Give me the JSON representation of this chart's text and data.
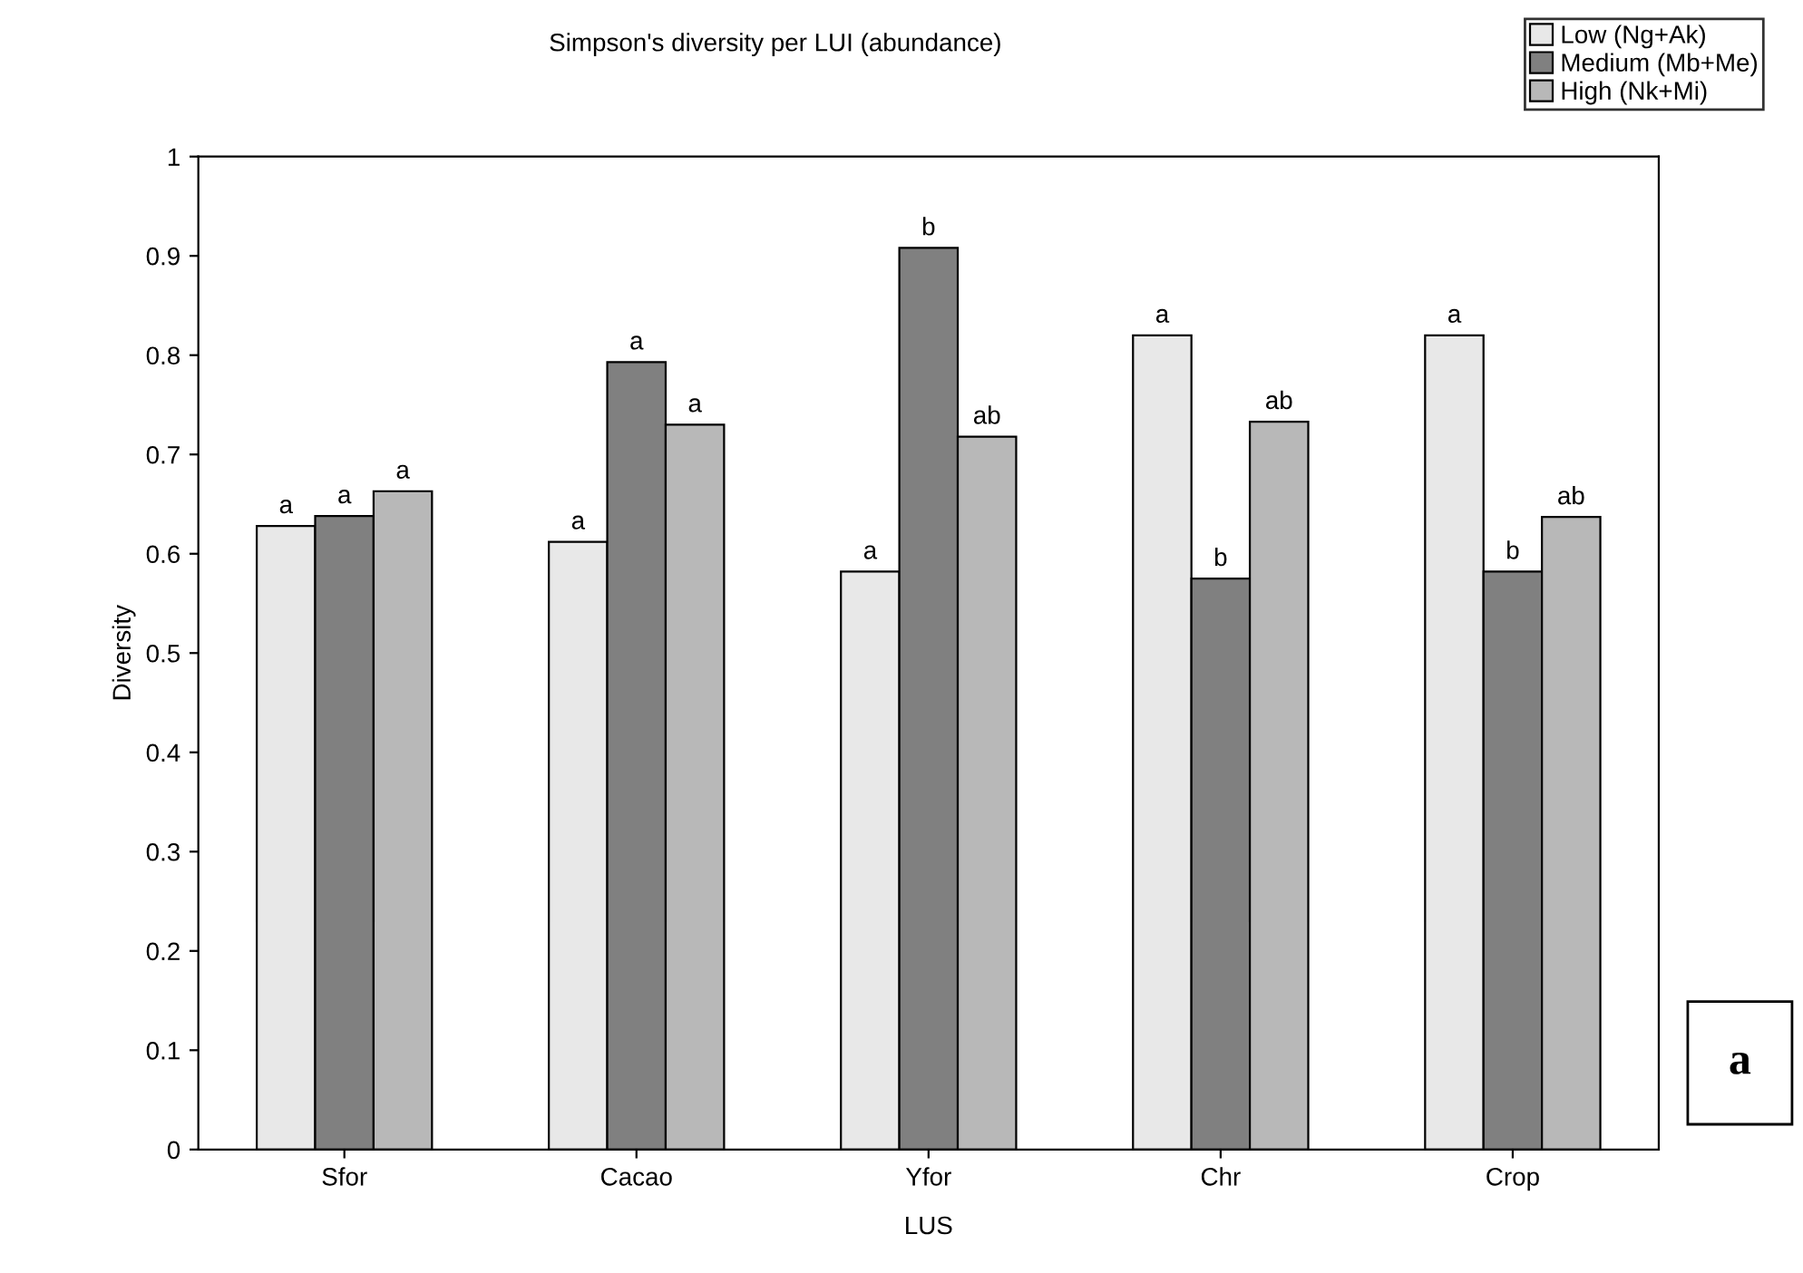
{
  "chart_data": {
    "type": "bar",
    "title": "Simpson's diversity per LUI (abundance)",
    "xlabel": "LUS",
    "ylabel": "Diversity",
    "categories": [
      "Sfor",
      "Cacao",
      "Yfor",
      "Chr",
      "Crop"
    ],
    "series": [
      {
        "name": "Low (Ng+Ak)",
        "color": "#e8e8e8",
        "values": [
          0.628,
          0.612,
          0.582,
          0.82,
          0.82
        ],
        "value_labels": [
          "a",
          "a",
          "a",
          "a",
          "a"
        ]
      },
      {
        "name": "Medium (Mb+Me)",
        "color": "#808080",
        "values": [
          0.638,
          0.793,
          0.908,
          0.575,
          0.582
        ],
        "value_labels": [
          "a",
          "a",
          "b",
          "b",
          "b"
        ]
      },
      {
        "name": "High (Nk+Mi)",
        "color": "#b8b8b8",
        "values": [
          0.663,
          0.73,
          0.718,
          0.733,
          0.637
        ],
        "value_labels": [
          "a",
          "a",
          "ab",
          "ab",
          "ab"
        ]
      }
    ],
    "ylim": [
      0,
      1
    ],
    "yticks": [
      0,
      0.1,
      0.2,
      0.3,
      0.4,
      0.5,
      0.6,
      0.7,
      0.8,
      0.9,
      1
    ],
    "grid": false,
    "legend": "top right",
    "annotations": [
      "a"
    ]
  }
}
